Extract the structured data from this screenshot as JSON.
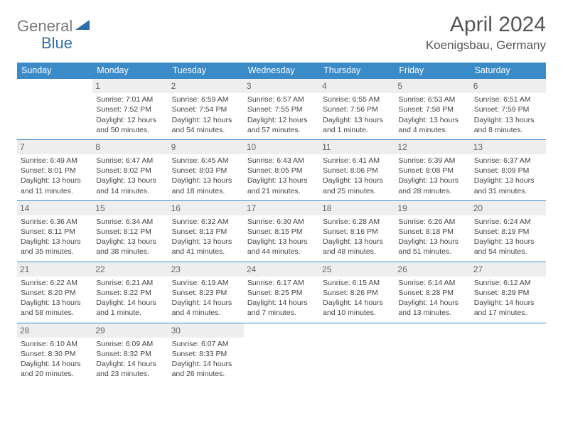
{
  "brand": {
    "part1": "General",
    "part2": "Blue"
  },
  "title": "April 2024",
  "location": "Koenigsbau, Germany",
  "headerColor": "#3b8bc9",
  "dayHeaders": [
    "Sunday",
    "Monday",
    "Tuesday",
    "Wednesday",
    "Thursday",
    "Friday",
    "Saturday"
  ],
  "weeks": [
    [
      {
        "n": "",
        "sr": "",
        "ss": "",
        "d1": "",
        "d2": ""
      },
      {
        "n": "1",
        "sr": "Sunrise: 7:01 AM",
        "ss": "Sunset: 7:52 PM",
        "d1": "Daylight: 12 hours",
        "d2": "and 50 minutes."
      },
      {
        "n": "2",
        "sr": "Sunrise: 6:59 AM",
        "ss": "Sunset: 7:54 PM",
        "d1": "Daylight: 12 hours",
        "d2": "and 54 minutes."
      },
      {
        "n": "3",
        "sr": "Sunrise: 6:57 AM",
        "ss": "Sunset: 7:55 PM",
        "d1": "Daylight: 12 hours",
        "d2": "and 57 minutes."
      },
      {
        "n": "4",
        "sr": "Sunrise: 6:55 AM",
        "ss": "Sunset: 7:56 PM",
        "d1": "Daylight: 13 hours",
        "d2": "and 1 minute."
      },
      {
        "n": "5",
        "sr": "Sunrise: 6:53 AM",
        "ss": "Sunset: 7:58 PM",
        "d1": "Daylight: 13 hours",
        "d2": "and 4 minutes."
      },
      {
        "n": "6",
        "sr": "Sunrise: 6:51 AM",
        "ss": "Sunset: 7:59 PM",
        "d1": "Daylight: 13 hours",
        "d2": "and 8 minutes."
      }
    ],
    [
      {
        "n": "7",
        "sr": "Sunrise: 6:49 AM",
        "ss": "Sunset: 8:01 PM",
        "d1": "Daylight: 13 hours",
        "d2": "and 11 minutes."
      },
      {
        "n": "8",
        "sr": "Sunrise: 6:47 AM",
        "ss": "Sunset: 8:02 PM",
        "d1": "Daylight: 13 hours",
        "d2": "and 14 minutes."
      },
      {
        "n": "9",
        "sr": "Sunrise: 6:45 AM",
        "ss": "Sunset: 8:03 PM",
        "d1": "Daylight: 13 hours",
        "d2": "and 18 minutes."
      },
      {
        "n": "10",
        "sr": "Sunrise: 6:43 AM",
        "ss": "Sunset: 8:05 PM",
        "d1": "Daylight: 13 hours",
        "d2": "and 21 minutes."
      },
      {
        "n": "11",
        "sr": "Sunrise: 6:41 AM",
        "ss": "Sunset: 8:06 PM",
        "d1": "Daylight: 13 hours",
        "d2": "and 25 minutes."
      },
      {
        "n": "12",
        "sr": "Sunrise: 6:39 AM",
        "ss": "Sunset: 8:08 PM",
        "d1": "Daylight: 13 hours",
        "d2": "and 28 minutes."
      },
      {
        "n": "13",
        "sr": "Sunrise: 6:37 AM",
        "ss": "Sunset: 8:09 PM",
        "d1": "Daylight: 13 hours",
        "d2": "and 31 minutes."
      }
    ],
    [
      {
        "n": "14",
        "sr": "Sunrise: 6:36 AM",
        "ss": "Sunset: 8:11 PM",
        "d1": "Daylight: 13 hours",
        "d2": "and 35 minutes."
      },
      {
        "n": "15",
        "sr": "Sunrise: 6:34 AM",
        "ss": "Sunset: 8:12 PM",
        "d1": "Daylight: 13 hours",
        "d2": "and 38 minutes."
      },
      {
        "n": "16",
        "sr": "Sunrise: 6:32 AM",
        "ss": "Sunset: 8:13 PM",
        "d1": "Daylight: 13 hours",
        "d2": "and 41 minutes."
      },
      {
        "n": "17",
        "sr": "Sunrise: 6:30 AM",
        "ss": "Sunset: 8:15 PM",
        "d1": "Daylight: 13 hours",
        "d2": "and 44 minutes."
      },
      {
        "n": "18",
        "sr": "Sunrise: 6:28 AM",
        "ss": "Sunset: 8:16 PM",
        "d1": "Daylight: 13 hours",
        "d2": "and 48 minutes."
      },
      {
        "n": "19",
        "sr": "Sunrise: 6:26 AM",
        "ss": "Sunset: 8:18 PM",
        "d1": "Daylight: 13 hours",
        "d2": "and 51 minutes."
      },
      {
        "n": "20",
        "sr": "Sunrise: 6:24 AM",
        "ss": "Sunset: 8:19 PM",
        "d1": "Daylight: 13 hours",
        "d2": "and 54 minutes."
      }
    ],
    [
      {
        "n": "21",
        "sr": "Sunrise: 6:22 AM",
        "ss": "Sunset: 8:20 PM",
        "d1": "Daylight: 13 hours",
        "d2": "and 58 minutes."
      },
      {
        "n": "22",
        "sr": "Sunrise: 6:21 AM",
        "ss": "Sunset: 8:22 PM",
        "d1": "Daylight: 14 hours",
        "d2": "and 1 minute."
      },
      {
        "n": "23",
        "sr": "Sunrise: 6:19 AM",
        "ss": "Sunset: 8:23 PM",
        "d1": "Daylight: 14 hours",
        "d2": "and 4 minutes."
      },
      {
        "n": "24",
        "sr": "Sunrise: 6:17 AM",
        "ss": "Sunset: 8:25 PM",
        "d1": "Daylight: 14 hours",
        "d2": "and 7 minutes."
      },
      {
        "n": "25",
        "sr": "Sunrise: 6:15 AM",
        "ss": "Sunset: 8:26 PM",
        "d1": "Daylight: 14 hours",
        "d2": "and 10 minutes."
      },
      {
        "n": "26",
        "sr": "Sunrise: 6:14 AM",
        "ss": "Sunset: 8:28 PM",
        "d1": "Daylight: 14 hours",
        "d2": "and 13 minutes."
      },
      {
        "n": "27",
        "sr": "Sunrise: 6:12 AM",
        "ss": "Sunset: 8:29 PM",
        "d1": "Daylight: 14 hours",
        "d2": "and 17 minutes."
      }
    ],
    [
      {
        "n": "28",
        "sr": "Sunrise: 6:10 AM",
        "ss": "Sunset: 8:30 PM",
        "d1": "Daylight: 14 hours",
        "d2": "and 20 minutes."
      },
      {
        "n": "29",
        "sr": "Sunrise: 6:09 AM",
        "ss": "Sunset: 8:32 PM",
        "d1": "Daylight: 14 hours",
        "d2": "and 23 minutes."
      },
      {
        "n": "30",
        "sr": "Sunrise: 6:07 AM",
        "ss": "Sunset: 8:33 PM",
        "d1": "Daylight: 14 hours",
        "d2": "and 26 minutes."
      },
      {
        "n": "",
        "sr": "",
        "ss": "",
        "d1": "",
        "d2": ""
      },
      {
        "n": "",
        "sr": "",
        "ss": "",
        "d1": "",
        "d2": ""
      },
      {
        "n": "",
        "sr": "",
        "ss": "",
        "d1": "",
        "d2": ""
      },
      {
        "n": "",
        "sr": "",
        "ss": "",
        "d1": "",
        "d2": ""
      }
    ]
  ]
}
